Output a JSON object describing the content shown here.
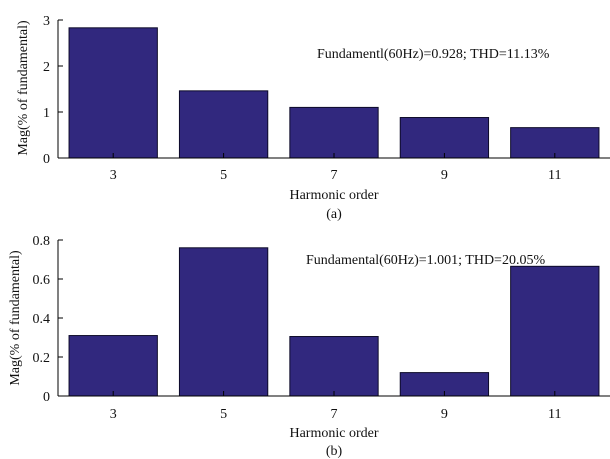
{
  "figure": {
    "bar_color": "#31287e",
    "bar_stroke": "#0d0a29",
    "axis_color": "#000000"
  },
  "chart_data": [
    {
      "type": "bar",
      "categories": [
        "3",
        "5",
        "7",
        "9",
        "11"
      ],
      "values": [
        2.83,
        1.46,
        1.1,
        0.88,
        0.66
      ],
      "title": "",
      "xlabel": "Harmonic order",
      "ylabel": "Mag(% of fundamental)",
      "ylim": [
        0,
        3
      ],
      "yticks": [
        0,
        1,
        2,
        3
      ],
      "annotation": "Fundamentl(60Hz)=0.928; THD=11.13%",
      "caption": "(a)",
      "grid": false
    },
    {
      "type": "bar",
      "categories": [
        "3",
        "5",
        "7",
        "9",
        "11"
      ],
      "values": [
        0.31,
        0.76,
        0.305,
        0.12,
        0.665
      ],
      "title": "",
      "xlabel": "Harmonic order",
      "ylabel": "Mag(% of fundamental)",
      "ylim": [
        0,
        0.8
      ],
      "yticks": [
        0,
        0.2,
        0.4,
        0.6,
        0.8
      ],
      "annotation": "Fundamental(60Hz)=1.001; THD=20.05%",
      "caption": "(b)",
      "grid": false
    }
  ]
}
